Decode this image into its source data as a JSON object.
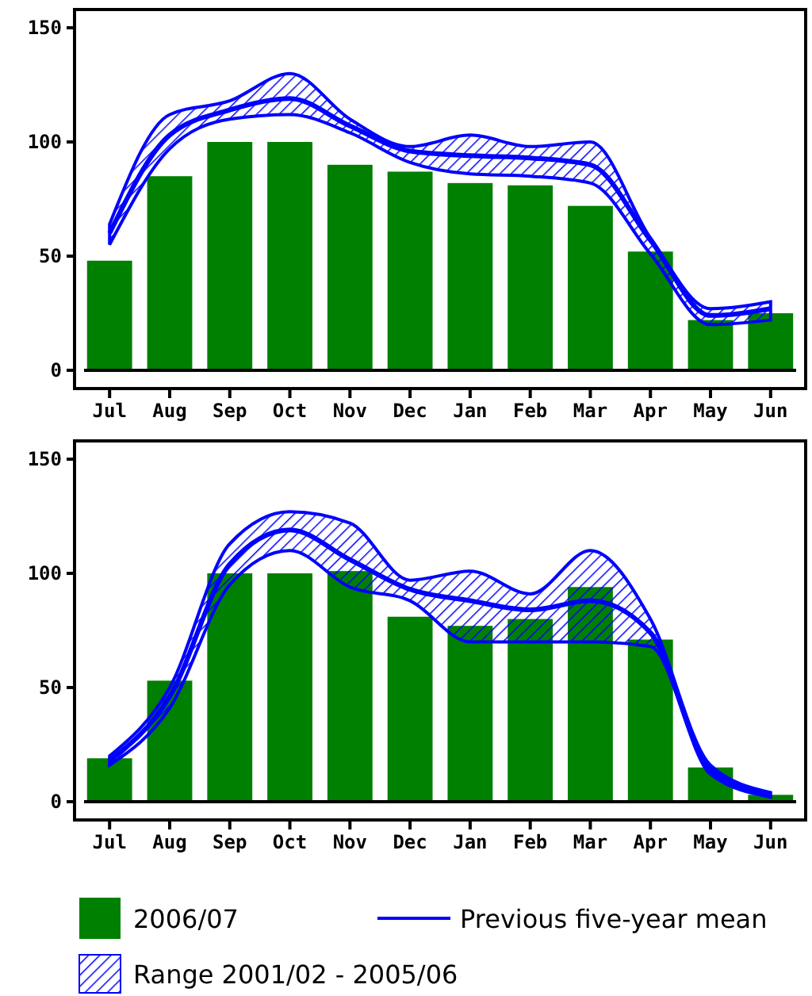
{
  "chart_data": [
    {
      "type": "bar",
      "categories": [
        "Jul",
        "Aug",
        "Sep",
        "Oct",
        "Nov",
        "Dec",
        "Jan",
        "Feb",
        "Mar",
        "Apr",
        "May",
        "Jun"
      ],
      "ylim": [
        -8,
        158
      ],
      "yticks": [
        0,
        50,
        100,
        150
      ],
      "legend": "bottom",
      "annotations": [
        "Range 2001/02 - 2005/06"
      ],
      "series": [
        {
          "name": "2006/07",
          "color": "#008000",
          "values": [
            48,
            85,
            100,
            100,
            90,
            87,
            82,
            81,
            72,
            52,
            22,
            25
          ]
        },
        {
          "type": "line",
          "name": "Previous five-year mean",
          "color": "#0000ff",
          "values": [
            60,
            103,
            114,
            119,
            107,
            96,
            94,
            93,
            90,
            57,
            24,
            27
          ],
          "lower": [
            55,
            97,
            110,
            112,
            104,
            91,
            86,
            85,
            82,
            51,
            20,
            22
          ],
          "upper": [
            64,
            112,
            118,
            130,
            110,
            98,
            103,
            98,
            100,
            58,
            27,
            30
          ]
        }
      ]
    },
    {
      "type": "bar",
      "categories": [
        "Jul",
        "Aug",
        "Sep",
        "Oct",
        "Nov",
        "Dec",
        "Jan",
        "Feb",
        "Mar",
        "Apr",
        "May",
        "Jun"
      ],
      "ylim": [
        -8,
        158
      ],
      "yticks": [
        0,
        50,
        100,
        150
      ],
      "series": [
        {
          "color": "#008000",
          "values": [
            19,
            53,
            100,
            100,
            101,
            81,
            77,
            80,
            94,
            71,
            15,
            3
          ]
        },
        {
          "type": "line",
          "color": "#0000ff",
          "values": [
            18,
            46,
            104,
            119,
            106,
            93,
            88,
            84,
            88,
            74,
            14,
            3
          ],
          "lower": [
            16,
            41,
            95,
            110,
            94,
            88,
            70,
            70,
            70,
            68,
            12,
            2
          ],
          "upper": [
            20,
            50,
            113,
            127,
            122,
            97,
            101,
            91,
            110,
            80,
            16,
            4
          ]
        }
      ]
    }
  ]
}
